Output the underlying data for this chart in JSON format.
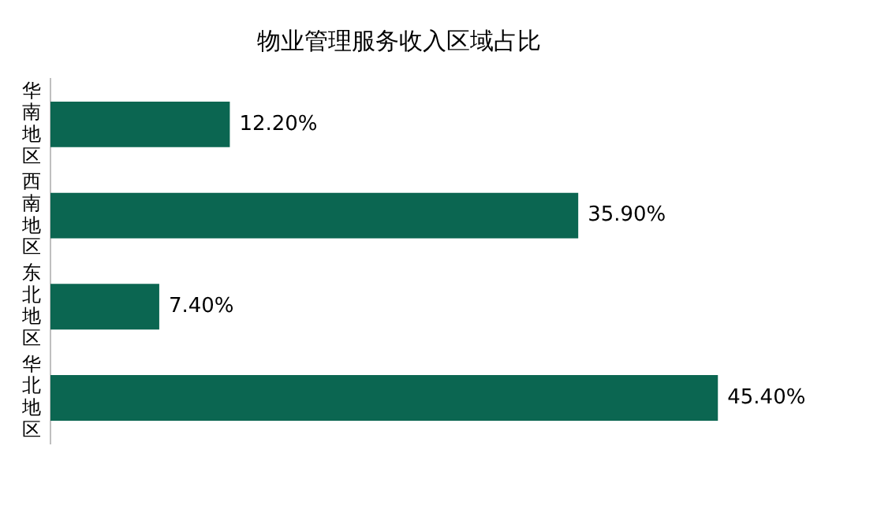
{
  "chart_data": {
    "type": "bar",
    "orientation": "horizontal",
    "title": "物业管理服务收入区域占比",
    "categories": [
      "华南地区",
      "西南地区",
      "东北地区",
      "华北地区"
    ],
    "values": [
      12.2,
      35.9,
      7.4,
      45.4
    ],
    "value_labels": [
      "12.20%",
      "35.90%",
      "7.40%",
      "45.40%"
    ],
    "color": "#0b6651",
    "grid": false,
    "legend": false,
    "tick_labels": "y"
  }
}
